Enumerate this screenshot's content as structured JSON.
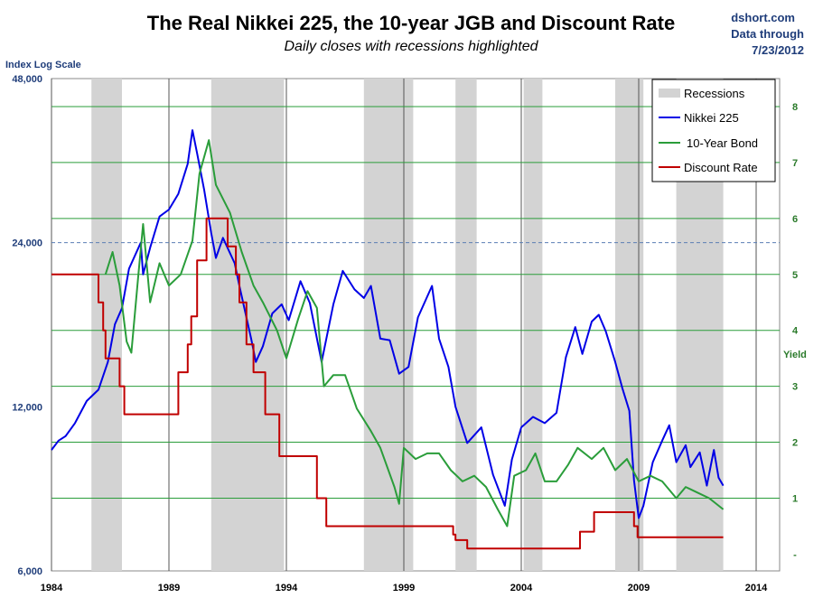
{
  "chart_data": {
    "type": "line",
    "title": "The Real Nikkei 225, the 10-year JGB and Discount Rate",
    "subtitle": "Daily closes with recessions highlighted",
    "source": [
      "dshort.com",
      "Data through",
      "7/23/2012"
    ],
    "left_axis": {
      "label": "Index Log Scale",
      "scale": "log",
      "range": [
        6000,
        48000
      ],
      "ticks": [
        6000,
        12000,
        24000,
        48000
      ],
      "tick_labels": [
        "6,000",
        "12,000",
        "24,000",
        "48,000"
      ]
    },
    "right_axis": {
      "label": "Yield",
      "range": [
        -0.3,
        8.5
      ],
      "ticks": [
        0,
        1,
        2,
        3,
        4,
        5,
        6,
        7,
        8
      ],
      "tick_labels": [
        "-",
        "1",
        "2",
        "3",
        "4",
        "5",
        "6",
        "7",
        "8"
      ]
    },
    "x_axis": {
      "range": [
        1984,
        2015
      ],
      "ticks": [
        1984,
        1989,
        1994,
        1999,
        2004,
        2009,
        2014
      ],
      "tick_labels": [
        "1984",
        "1989",
        "1994",
        "1999",
        "2004",
        "2009",
        "2014"
      ]
    },
    "recessions": [
      [
        1985.7,
        1987.0
      ],
      [
        1990.8,
        1993.9
      ],
      [
        1997.3,
        1999.4
      ],
      [
        2001.2,
        2002.1
      ],
      [
        2004.1,
        2004.9
      ],
      [
        2008.0,
        2009.2
      ],
      [
        2010.6,
        2012.6
      ]
    ],
    "legend": {
      "position": "top-right",
      "entries": [
        "Recessions",
        "Nikkei 225",
        "10-Year Bond",
        "Discount Rate"
      ]
    },
    "series": [
      {
        "name": "Nikkei 225",
        "axis": "left",
        "color": "#0000e6",
        "points": [
          [
            1984.0,
            10000
          ],
          [
            1984.3,
            10400
          ],
          [
            1984.6,
            10600
          ],
          [
            1985.0,
            11200
          ],
          [
            1985.5,
            12300
          ],
          [
            1986.0,
            12900
          ],
          [
            1986.4,
            14500
          ],
          [
            1986.7,
            17000
          ],
          [
            1987.0,
            18200
          ],
          [
            1987.3,
            21500
          ],
          [
            1987.8,
            24000
          ],
          [
            1987.9,
            21000
          ],
          [
            1988.2,
            23500
          ],
          [
            1988.6,
            26800
          ],
          [
            1989.0,
            27600
          ],
          [
            1989.4,
            29500
          ],
          [
            1989.8,
            33500
          ],
          [
            1990.0,
            38600
          ],
          [
            1990.2,
            35000
          ],
          [
            1990.5,
            30000
          ],
          [
            1990.8,
            25000
          ],
          [
            1991.0,
            22500
          ],
          [
            1991.3,
            24500
          ],
          [
            1991.8,
            22000
          ],
          [
            1992.0,
            20000
          ],
          [
            1992.5,
            16000
          ],
          [
            1992.7,
            14500
          ],
          [
            1993.0,
            15500
          ],
          [
            1993.4,
            17800
          ],
          [
            1993.8,
            18500
          ],
          [
            1994.1,
            17300
          ],
          [
            1994.6,
            20400
          ],
          [
            1995.0,
            18600
          ],
          [
            1995.5,
            14500
          ],
          [
            1996.0,
            18500
          ],
          [
            1996.4,
            21300
          ],
          [
            1996.9,
            19700
          ],
          [
            1997.3,
            19000
          ],
          [
            1997.6,
            20000
          ],
          [
            1998.0,
            16000
          ],
          [
            1998.4,
            15900
          ],
          [
            1998.8,
            13800
          ],
          [
            1999.2,
            14200
          ],
          [
            1999.6,
            17500
          ],
          [
            2000.2,
            20000
          ],
          [
            2000.5,
            16000
          ],
          [
            2000.9,
            14200
          ],
          [
            2001.2,
            12000
          ],
          [
            2001.7,
            10300
          ],
          [
            2002.3,
            11000
          ],
          [
            2002.8,
            9000
          ],
          [
            2003.3,
            7900
          ],
          [
            2003.6,
            9600
          ],
          [
            2004.0,
            11000
          ],
          [
            2004.5,
            11500
          ],
          [
            2005.0,
            11200
          ],
          [
            2005.5,
            11700
          ],
          [
            2005.9,
            14800
          ],
          [
            2006.3,
            16800
          ],
          [
            2006.6,
            15000
          ],
          [
            2007.0,
            17200
          ],
          [
            2007.3,
            17700
          ],
          [
            2007.6,
            16500
          ],
          [
            2008.0,
            14500
          ],
          [
            2008.3,
            13000
          ],
          [
            2008.6,
            11800
          ],
          [
            2008.8,
            8800
          ],
          [
            2009.0,
            7500
          ],
          [
            2009.2,
            7900
          ],
          [
            2009.6,
            9500
          ],
          [
            2010.0,
            10400
          ],
          [
            2010.3,
            11100
          ],
          [
            2010.6,
            9500
          ],
          [
            2011.0,
            10200
          ],
          [
            2011.2,
            9300
          ],
          [
            2011.6,
            9900
          ],
          [
            2011.9,
            8600
          ],
          [
            2012.2,
            10000
          ],
          [
            2012.4,
            8900
          ],
          [
            2012.6,
            8600
          ]
        ]
      },
      {
        "name": "10-Year Bond",
        "axis": "right",
        "color": "#2a9d3a",
        "points": [
          [
            1986.3,
            5.0
          ],
          [
            1986.6,
            5.4
          ],
          [
            1986.9,
            4.8
          ],
          [
            1987.2,
            3.8
          ],
          [
            1987.4,
            3.6
          ],
          [
            1987.7,
            5.0
          ],
          [
            1987.9,
            5.9
          ],
          [
            1988.2,
            4.5
          ],
          [
            1988.6,
            5.2
          ],
          [
            1989.0,
            4.8
          ],
          [
            1989.5,
            5.0
          ],
          [
            1990.0,
            5.6
          ],
          [
            1990.3,
            6.8
          ],
          [
            1990.7,
            7.4
          ],
          [
            1991.0,
            6.6
          ],
          [
            1991.6,
            6.1
          ],
          [
            1992.1,
            5.4
          ],
          [
            1992.6,
            4.8
          ],
          [
            1993.0,
            4.5
          ],
          [
            1993.6,
            4.0
          ],
          [
            1994.0,
            3.5
          ],
          [
            1994.5,
            4.2
          ],
          [
            1994.9,
            4.7
          ],
          [
            1995.3,
            4.4
          ],
          [
            1995.6,
            3.0
          ],
          [
            1996.0,
            3.2
          ],
          [
            1996.5,
            3.2
          ],
          [
            1997.0,
            2.6
          ],
          [
            1997.6,
            2.2
          ],
          [
            1998.0,
            1.9
          ],
          [
            1998.6,
            1.2
          ],
          [
            1998.8,
            0.9
          ],
          [
            1999.0,
            1.9
          ],
          [
            1999.5,
            1.7
          ],
          [
            2000.0,
            1.8
          ],
          [
            2000.5,
            1.8
          ],
          [
            2001.0,
            1.5
          ],
          [
            2001.5,
            1.3
          ],
          [
            2002.0,
            1.4
          ],
          [
            2002.5,
            1.2
          ],
          [
            2003.0,
            0.8
          ],
          [
            2003.4,
            0.5
          ],
          [
            2003.7,
            1.4
          ],
          [
            2004.2,
            1.5
          ],
          [
            2004.6,
            1.8
          ],
          [
            2005.0,
            1.3
          ],
          [
            2005.5,
            1.3
          ],
          [
            2006.0,
            1.6
          ],
          [
            2006.4,
            1.9
          ],
          [
            2007.0,
            1.7
          ],
          [
            2007.5,
            1.9
          ],
          [
            2008.0,
            1.5
          ],
          [
            2008.5,
            1.7
          ],
          [
            2009.0,
            1.3
          ],
          [
            2009.5,
            1.4
          ],
          [
            2010.0,
            1.3
          ],
          [
            2010.6,
            1.0
          ],
          [
            2011.0,
            1.2
          ],
          [
            2011.5,
            1.1
          ],
          [
            2012.0,
            1.0
          ],
          [
            2012.6,
            0.8
          ]
        ]
      },
      {
        "name": "Discount Rate",
        "axis": "right",
        "color": "#c00000",
        "points": [
          [
            1984.0,
            5.0
          ],
          [
            1986.0,
            5.0
          ],
          [
            1986.0,
            4.5
          ],
          [
            1986.2,
            4.5
          ],
          [
            1986.2,
            4.0
          ],
          [
            1986.3,
            4.0
          ],
          [
            1986.3,
            3.5
          ],
          [
            1986.9,
            3.5
          ],
          [
            1986.9,
            3.0
          ],
          [
            1987.1,
            3.0
          ],
          [
            1987.1,
            2.5
          ],
          [
            1989.4,
            2.5
          ],
          [
            1989.4,
            3.25
          ],
          [
            1989.8,
            3.25
          ],
          [
            1989.8,
            3.75
          ],
          [
            1989.95,
            3.75
          ],
          [
            1989.95,
            4.25
          ],
          [
            1990.2,
            4.25
          ],
          [
            1990.2,
            5.25
          ],
          [
            1990.6,
            5.25
          ],
          [
            1990.6,
            6.0
          ],
          [
            1991.5,
            6.0
          ],
          [
            1991.5,
            5.5
          ],
          [
            1991.85,
            5.5
          ],
          [
            1991.85,
            5.0
          ],
          [
            1992.0,
            5.0
          ],
          [
            1992.0,
            4.5
          ],
          [
            1992.3,
            4.5
          ],
          [
            1992.3,
            3.75
          ],
          [
            1992.6,
            3.75
          ],
          [
            1992.6,
            3.25
          ],
          [
            1993.1,
            3.25
          ],
          [
            1993.1,
            2.5
          ],
          [
            1993.7,
            2.5
          ],
          [
            1993.7,
            1.75
          ],
          [
            1995.3,
            1.75
          ],
          [
            1995.3,
            1.0
          ],
          [
            1995.7,
            1.0
          ],
          [
            1995.7,
            0.5
          ],
          [
            2001.1,
            0.5
          ],
          [
            2001.1,
            0.35
          ],
          [
            2001.2,
            0.35
          ],
          [
            2001.2,
            0.25
          ],
          [
            2001.7,
            0.25
          ],
          [
            2001.7,
            0.1
          ],
          [
            2006.5,
            0.1
          ],
          [
            2006.5,
            0.4
          ],
          [
            2007.1,
            0.4
          ],
          [
            2007.1,
            0.75
          ],
          [
            2008.8,
            0.75
          ],
          [
            2008.8,
            0.5
          ],
          [
            2008.95,
            0.5
          ],
          [
            2008.95,
            0.3
          ],
          [
            2012.6,
            0.3
          ]
        ]
      }
    ]
  }
}
